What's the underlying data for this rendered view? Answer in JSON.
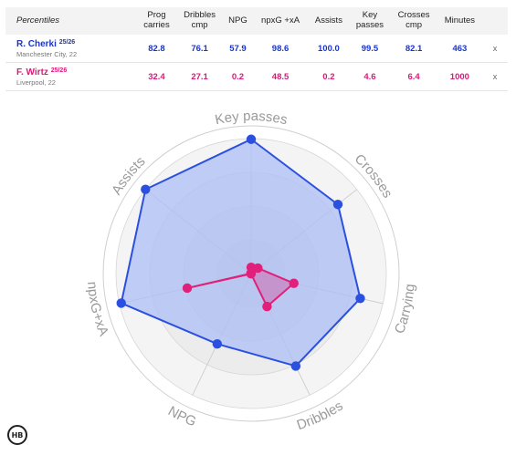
{
  "table": {
    "header_first": "Percentiles",
    "columns": [
      {
        "line1": "Prog",
        "line2": "carries"
      },
      {
        "line1": "Dribbles",
        "line2": "cmp"
      },
      {
        "line1": "NPG",
        "line2": ""
      },
      {
        "line1": "npxG +xA",
        "line2": ""
      },
      {
        "line1": "Assists",
        "line2": ""
      },
      {
        "line1": "Key",
        "line2": "passes"
      },
      {
        "line1": "Crosses",
        "line2": "cmp"
      },
      {
        "line1": "Minutes",
        "line2": ""
      }
    ],
    "remove_label": "x",
    "players": [
      {
        "name": "R. Cherki",
        "season": "25/26",
        "team": "Manchester City, 22",
        "color": "#1a36c8",
        "values": [
          "82.8",
          "76.1",
          "57.9",
          "98.6",
          "100.0",
          "99.5",
          "82.1",
          "463"
        ]
      },
      {
        "name": "F. Wirtz",
        "season": "25/26",
        "team": "Liverpool, 22",
        "color": "#d81b79",
        "values": [
          "32.4",
          "27.1",
          "0.2",
          "48.5",
          "0.2",
          "4.6",
          "6.4",
          "1000"
        ]
      }
    ]
  },
  "chart_data": {
    "type": "radar",
    "axes": [
      "Key passes",
      "Crosses",
      "Carrying",
      "Dribbles",
      "NPG",
      "npxG+xA",
      "Assists"
    ],
    "rlim": [
      0,
      100
    ],
    "series": [
      {
        "name": "R. Cherki",
        "values": [
          99.5,
          82.1,
          82.8,
          76.1,
          57.9,
          98.6,
          100.0
        ],
        "color": "#2b50e0",
        "fill": "#aebff5"
      },
      {
        "name": "F. Wirtz",
        "values": [
          4.6,
          6.4,
          32.4,
          27.1,
          0.2,
          48.5,
          0.2
        ],
        "color": "#e0207a"
      }
    ]
  },
  "logo": {
    "text": "HB"
  }
}
